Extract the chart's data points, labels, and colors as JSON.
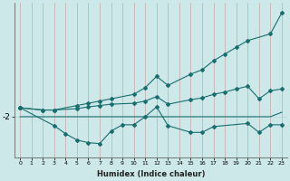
{
  "xlabel": "Humidex (Indice chaleur)",
  "background_color": "#cce8e8",
  "line_color": "#1a6e6e",
  "grid_color_v": "#b8d8d8",
  "grid_color_h": "#b8d8d8",
  "ytick_label": "-2",
  "ytick_value": -2.0,
  "ylim": [
    -2.9,
    0.55
  ],
  "xlim": [
    -0.5,
    23.5
  ],
  "line_flat_x": [
    0,
    1,
    2,
    3,
    4,
    5,
    6,
    7,
    8,
    9,
    10,
    11,
    12,
    13,
    14,
    15,
    16,
    17,
    18,
    19,
    20,
    21,
    22,
    23
  ],
  "line_flat_y": [
    -2.0,
    -2.0,
    -2.0,
    -2.0,
    -2.0,
    -2.0,
    -2.0,
    -2.0,
    -2.0,
    -2.0,
    -2.0,
    -2.0,
    -2.0,
    -2.0,
    -2.0,
    -2.0,
    -2.0,
    -2.0,
    -2.0,
    -2.0,
    -2.0,
    -2.0,
    -2.0,
    -1.9
  ],
  "line_diag_x": [
    0,
    2,
    3,
    5,
    6,
    7,
    8,
    10,
    11,
    12,
    13,
    15,
    16,
    17,
    18,
    19,
    20,
    22,
    23
  ],
  "line_diag_y": [
    -1.8,
    -1.85,
    -1.85,
    -1.75,
    -1.7,
    -1.65,
    -1.6,
    -1.5,
    -1.35,
    -1.1,
    -1.3,
    -1.05,
    -0.95,
    -0.75,
    -0.6,
    -0.45,
    -0.3,
    -0.15,
    0.32
  ],
  "line_mid_x": [
    0,
    2,
    3,
    5,
    6,
    7,
    8,
    10,
    11,
    12,
    13,
    15,
    16,
    17,
    18,
    19,
    20,
    21,
    22,
    23
  ],
  "line_mid_y": [
    -1.8,
    -1.85,
    -1.85,
    -1.82,
    -1.78,
    -1.75,
    -1.72,
    -1.7,
    -1.65,
    -1.55,
    -1.72,
    -1.62,
    -1.58,
    -1.5,
    -1.45,
    -1.38,
    -1.32,
    -1.6,
    -1.42,
    -1.38
  ],
  "line_low_x": [
    0,
    3,
    4,
    5,
    6,
    7,
    8,
    9,
    10,
    11,
    12,
    13,
    15,
    16,
    17,
    20,
    21,
    22,
    23
  ],
  "line_low_y": [
    -1.8,
    -2.2,
    -2.38,
    -2.52,
    -2.58,
    -2.6,
    -2.32,
    -2.18,
    -2.18,
    -2.0,
    -1.78,
    -2.2,
    -2.35,
    -2.35,
    -2.22,
    -2.15,
    -2.35,
    -2.18,
    -2.18
  ]
}
